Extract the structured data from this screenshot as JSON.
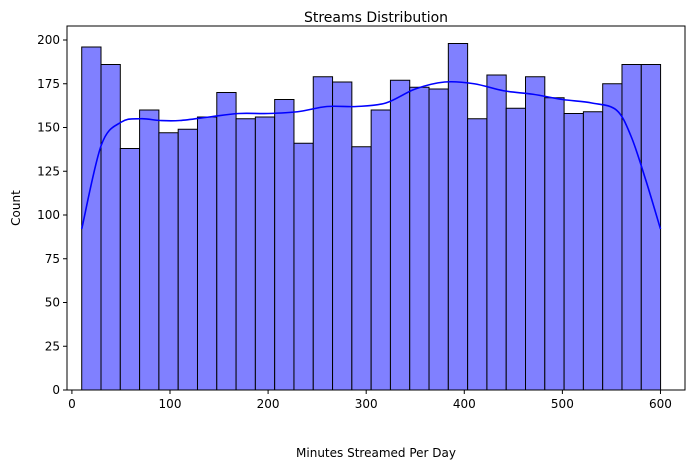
{
  "chart_data": {
    "type": "bar",
    "title": "Streams Distribution",
    "xlabel": "Minutes Streamed Per Day",
    "ylabel": "Count",
    "xlim": [
      -5,
      625
    ],
    "ylim": [
      0,
      208
    ],
    "xticks": [
      0,
      100,
      200,
      300,
      400,
      500,
      600
    ],
    "yticks": [
      0,
      25,
      50,
      75,
      100,
      125,
      150,
      175,
      200
    ],
    "bin_start": 10,
    "bin_width": 19.67,
    "values": [
      196,
      186,
      138,
      160,
      147,
      149,
      156,
      170,
      155,
      156,
      166,
      141,
      179,
      176,
      139,
      160,
      177,
      173,
      172,
      198,
      155,
      180,
      161,
      179,
      167,
      158,
      159,
      175,
      186,
      186
    ],
    "kde": {
      "x": [
        10,
        30,
        50,
        70,
        90,
        110,
        140,
        170,
        200,
        230,
        260,
        290,
        320,
        350,
        380,
        410,
        440,
        470,
        500,
        530,
        555,
        570,
        585,
        600
      ],
      "y": [
        92,
        140,
        153,
        155,
        154,
        154,
        156,
        158,
        158,
        159,
        162,
        162,
        164,
        172,
        176,
        175,
        171,
        169,
        166,
        164,
        160,
        145,
        120,
        92
      ]
    },
    "bar_color": "#8080ff",
    "bar_edge_color": "#000000",
    "kde_color": "#0000ff",
    "grid": false,
    "legend": "none"
  }
}
